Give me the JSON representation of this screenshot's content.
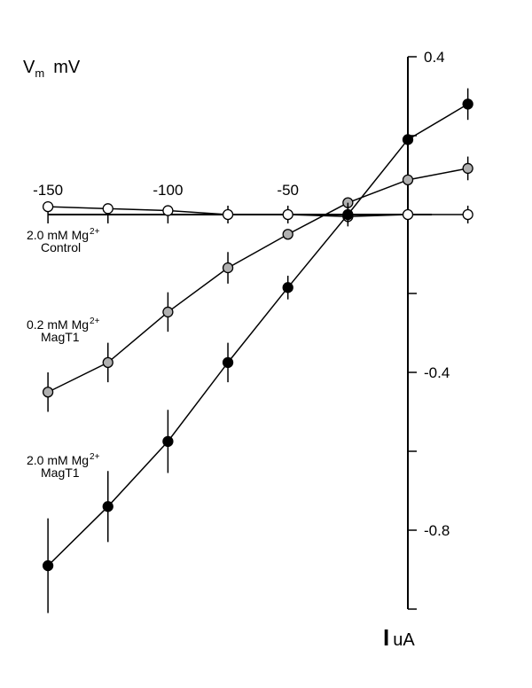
{
  "chart_data": {
    "type": "line",
    "ytitle": {
      "main": "V",
      "sub": "m",
      "unit": "mV"
    },
    "xtitle": {
      "symbol": "I",
      "unit": "uA"
    },
    "x_ticks": [
      -150,
      -100,
      -50
    ],
    "y_ticks": [
      0.4,
      -0.4,
      -0.8
    ],
    "y_minor_ticks": [
      0.2,
      -0.2,
      -0.6
    ],
    "xlim": [
      -150,
      10
    ],
    "ylim": [
      -1.0,
      0.4
    ],
    "series": [
      {
        "name_lines": [
          {
            "text": "2.0 mM Mg",
            "sup": "2+"
          },
          {
            "text": "Control",
            "sup": ""
          }
        ],
        "marker_fill": "#ffffff",
        "x": [
          -150,
          -125,
          -100,
          -75,
          -50,
          -25,
          0,
          25
        ],
        "y": [
          0.02,
          0.015,
          0.01,
          0.0,
          0.0,
          -0.005,
          0.0,
          0.0
        ],
        "err": [
          0.0,
          0.0,
          0.0,
          0.0,
          0.0,
          0.0,
          0.0,
          0.0
        ]
      },
      {
        "name_lines": [
          {
            "text": "0.2 mM Mg",
            "sup": "2+"
          },
          {
            "text": "MagT1",
            "sup": ""
          }
        ],
        "marker_fill": "#b0b0b0",
        "x": [
          -150,
          -125,
          -100,
          -75,
          -50,
          -25,
          0,
          25
        ],
        "y": [
          -0.45,
          -0.375,
          -0.247,
          -0.135,
          -0.05,
          0.03,
          0.088,
          0.117
        ],
        "err": [
          0.05,
          0.05,
          0.05,
          0.04,
          0.0,
          0.0,
          0.0,
          0.03
        ]
      },
      {
        "name_lines": [
          {
            "text": "2.0 mM Mg",
            "sup": "2+"
          },
          {
            "text": "MagT1",
            "sup": ""
          }
        ],
        "marker_fill": "#000000",
        "x": [
          -150,
          -125,
          -100,
          -75,
          -50,
          -25,
          0,
          25
        ],
        "y": [
          -0.89,
          -0.74,
          -0.575,
          -0.375,
          -0.185,
          0.0,
          0.19,
          0.28
        ],
        "err": [
          0.12,
          0.09,
          0.08,
          0.05,
          0.03,
          0.03,
          0.0,
          0.04
        ]
      }
    ]
  }
}
